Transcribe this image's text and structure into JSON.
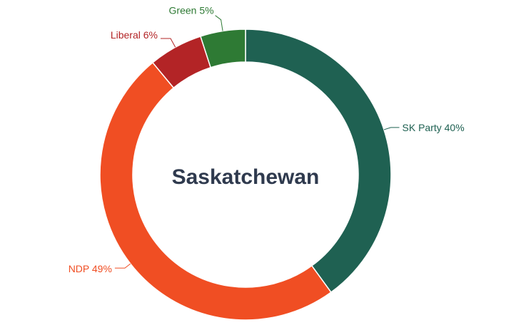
{
  "chart_data": {
    "type": "pie",
    "variant": "donut",
    "title": "Saskatchewan",
    "legend": "none",
    "slices": [
      {
        "name": "SK Party",
        "value": 40,
        "label": "SK Party 40%",
        "color": "#1f6152"
      },
      {
        "name": "NDP",
        "value": 49,
        "label": "NDP 49%",
        "color": "#f04e23"
      },
      {
        "name": "Liberal",
        "value": 6,
        "label": "Liberal 6%",
        "color": "#b32426"
      },
      {
        "name": "Green",
        "value": 5,
        "label": "Green 5%",
        "color": "#2e7a34"
      }
    ]
  }
}
